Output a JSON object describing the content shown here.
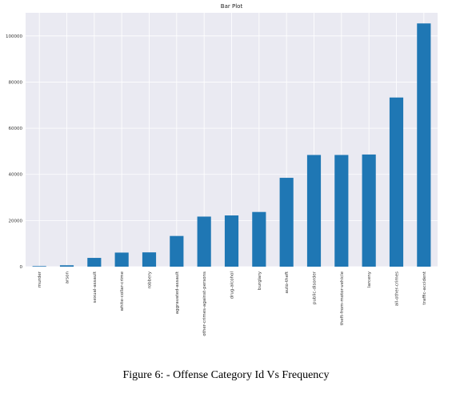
{
  "chart_data": {
    "type": "bar",
    "title": "Bar Plot",
    "xlabel": "",
    "ylabel": "",
    "categories": [
      "murder",
      "arson",
      "sexual-assault",
      "white-collar-crime",
      "robbery",
      "aggravated-assault",
      "other-crimes-against-persons",
      "drug-alcohol",
      "burglary",
      "auto-theft",
      "public-disorder",
      "theft-from-motor-vehicle",
      "larceny",
      "all-other-crimes",
      "traffic-accident"
    ],
    "values": [
      250,
      600,
      3800,
      6100,
      6200,
      13300,
      21700,
      22200,
      23700,
      38500,
      48400,
      48400,
      48600,
      73300,
      105400
    ],
    "ylim": [
      0,
      110000
    ],
    "yticks": [
      0,
      20000,
      40000,
      60000,
      80000,
      100000
    ],
    "ytick_labels": [
      "0",
      "20000",
      "40000",
      "60000",
      "80000",
      "100000"
    ],
    "grid": true,
    "bar_color": "#1f77b4",
    "background_color": "#eaeaf2",
    "grid_color": "#ffffff"
  },
  "caption": "Figure 6: - Offense Category Id Vs Frequency"
}
